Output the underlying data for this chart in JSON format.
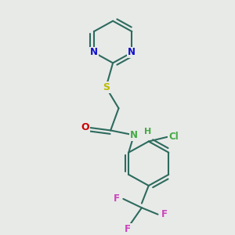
{
  "bg_color": "#e8eae8",
  "bond_color": "#2d6b5e",
  "N_color": "#1010cc",
  "S_color": "#bbbb00",
  "O_color": "#cc0000",
  "NH_color": "#44aa44",
  "Cl_color": "#44aa44",
  "F_color": "#cc44bb",
  "figsize": [
    3.0,
    3.0
  ],
  "dpi": 100,
  "xlim": [
    0,
    10
  ],
  "ylim": [
    0,
    10
  ]
}
